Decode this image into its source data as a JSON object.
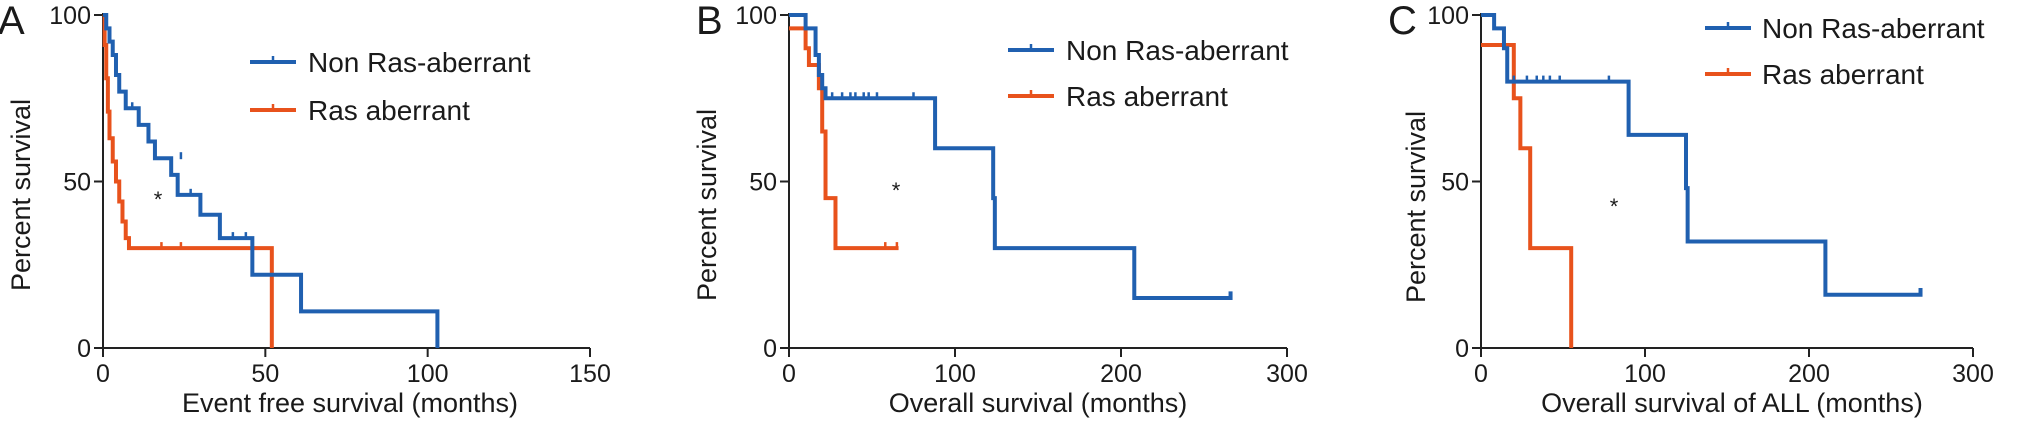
{
  "chart_data": [
    {
      "type": "line",
      "panel_label": "A",
      "xlabel": "Event free survival (months)",
      "ylabel": "Percent survival",
      "xlim": [
        0,
        150
      ],
      "ylim": [
        0,
        100
      ],
      "xticks": [
        0,
        50,
        100,
        150
      ],
      "yticks": [
        0,
        50,
        100
      ],
      "annotation": "*",
      "legend_position": "top-right",
      "series": [
        {
          "name": "Non Ras-aberrant",
          "color": "#2060b0",
          "steps": [
            [
              0,
              100
            ],
            [
              1,
              96
            ],
            [
              2,
              92
            ],
            [
              3,
              88
            ],
            [
              4,
              82
            ],
            [
              5,
              77
            ],
            [
              7,
              72
            ],
            [
              11,
              67
            ],
            [
              14,
              62
            ],
            [
              16,
              57
            ],
            [
              21,
              52
            ],
            [
              23,
              46
            ],
            [
              30,
              40
            ],
            [
              36,
              33
            ],
            [
              46,
              22
            ],
            [
              61,
              11
            ],
            [
              103,
              0
            ]
          ],
          "censored": [
            [
              9,
              72
            ],
            [
              24,
              57
            ],
            [
              27,
              46
            ],
            [
              40,
              33
            ],
            [
              44,
              33
            ]
          ]
        },
        {
          "name": "Ras aberrant",
          "color": "#e8521c",
          "steps": [
            [
              0,
              100
            ],
            [
              0.5,
              91
            ],
            [
              1,
              81
            ],
            [
              1.5,
              71
            ],
            [
              2,
              63
            ],
            [
              3,
              56
            ],
            [
              4,
              50
            ],
            [
              5,
              44
            ],
            [
              6,
              38
            ],
            [
              7,
              33
            ],
            [
              8,
              30
            ],
            [
              52,
              0
            ]
          ],
          "censored": [
            [
              18,
              30
            ],
            [
              24,
              30
            ]
          ]
        }
      ]
    },
    {
      "type": "line",
      "panel_label": "B",
      "xlabel": "Overall survival (months)",
      "ylabel": "Percent survival",
      "xlim": [
        0,
        300
      ],
      "ylim": [
        0,
        100
      ],
      "xticks": [
        0,
        100,
        200,
        300
      ],
      "yticks": [
        0,
        50,
        100
      ],
      "annotation": "*",
      "legend_position": "top-right",
      "series": [
        {
          "name": "Non Ras-aberrant",
          "color": "#2060b0",
          "steps": [
            [
              0,
              100
            ],
            [
              10,
              96
            ],
            [
              16,
              88
            ],
            [
              18,
              82
            ],
            [
              20,
              78
            ],
            [
              22,
              75
            ],
            [
              88,
              60
            ],
            [
              123,
              45
            ],
            [
              124,
              30
            ],
            [
              208,
              15
            ],
            [
              266,
              17
            ]
          ],
          "censored": [
            [
              26,
              75
            ],
            [
              32,
              75
            ],
            [
              37,
              75
            ],
            [
              40,
              75
            ],
            [
              45,
              75
            ],
            [
              48,
              75
            ],
            [
              53,
              75
            ],
            [
              75,
              75
            ],
            [
              266,
              15
            ]
          ]
        },
        {
          "name": "Ras aberrant",
          "color": "#e8521c",
          "steps": [
            [
              0,
              96
            ],
            [
              10,
              90
            ],
            [
              12,
              85
            ],
            [
              18,
              78
            ],
            [
              20,
              65
            ],
            [
              22,
              45
            ],
            [
              28,
              30
            ],
            [
              66,
              30
            ]
          ],
          "censored": [
            [
              58,
              30
            ],
            [
              65,
              30
            ]
          ]
        }
      ]
    },
    {
      "type": "line",
      "panel_label": "C",
      "xlabel": "Overall survival of ALL (months)",
      "ylabel": "Percent survival",
      "xlim": [
        0,
        300
      ],
      "ylim": [
        0,
        100
      ],
      "xticks": [
        0,
        100,
        200,
        300
      ],
      "yticks": [
        0,
        50,
        100
      ],
      "annotation": "*",
      "legend_position": "top-right",
      "series": [
        {
          "name": "Non Ras-aberrant",
          "color": "#2060b0",
          "steps": [
            [
              0,
              100
            ],
            [
              8,
              96
            ],
            [
              14,
              90
            ],
            [
              16,
              80
            ],
            [
              90,
              64
            ],
            [
              125,
              48
            ],
            [
              126,
              32
            ],
            [
              210,
              16
            ],
            [
              268,
              18
            ]
          ],
          "censored": [
            [
              20,
              80
            ],
            [
              28,
              80
            ],
            [
              34,
              80
            ],
            [
              38,
              80
            ],
            [
              42,
              80
            ],
            [
              48,
              80
            ],
            [
              78,
              80
            ],
            [
              268,
              16
            ]
          ]
        },
        {
          "name": "Ras aberrant",
          "color": "#e8521c",
          "steps": [
            [
              0,
              91
            ],
            [
              20,
              75
            ],
            [
              24,
              60
            ],
            [
              30,
              30
            ],
            [
              55,
              0
            ]
          ],
          "censored": []
        }
      ]
    }
  ]
}
